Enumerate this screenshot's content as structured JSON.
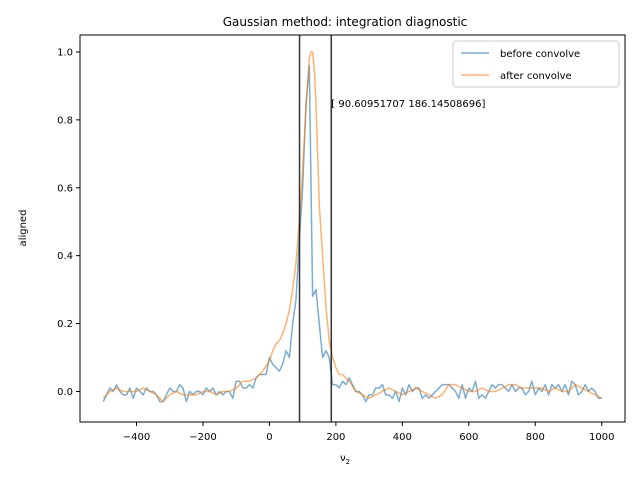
{
  "chart_data": {
    "type": "line",
    "title": "Gaussian method:  integration diagnostic",
    "xlabel": "ν",
    "xlabel_sub": "2",
    "ylabel": "aligned",
    "xlim": [
      -570,
      1070
    ],
    "ylim": [
      -0.09,
      1.05
    ],
    "xticks": [
      -400,
      -200,
      0,
      200,
      400,
      600,
      800,
      1000
    ],
    "yticks": [
      0.0,
      0.2,
      0.4,
      0.6,
      0.8,
      1.0
    ],
    "xtick_labels": [
      "−400",
      "−200",
      "0",
      "200",
      "400",
      "600",
      "800",
      "1000"
    ],
    "ytick_labels": [
      "0.0",
      "0.2",
      "0.4",
      "0.6",
      "0.8",
      "1.0"
    ],
    "legend_position": "top-right",
    "vlines": [
      90.60951707,
      186.14508696
    ],
    "annotation": {
      "text": "[ 90.60951707 186.14508696]",
      "x": 186.14508696,
      "y": 0.85
    },
    "series": [
      {
        "name": "before convolve",
        "color": "#1f77b4",
        "x": [
          -500,
          -490,
          -480,
          -470,
          -460,
          -450,
          -440,
          -430,
          -420,
          -410,
          -400,
          -390,
          -380,
          -370,
          -360,
          -350,
          -340,
          -330,
          -320,
          -310,
          -300,
          -290,
          -280,
          -270,
          -260,
          -250,
          -240,
          -230,
          -220,
          -210,
          -200,
          -190,
          -180,
          -170,
          -160,
          -150,
          -140,
          -130,
          -120,
          -110,
          -100,
          -90,
          -80,
          -70,
          -60,
          -50,
          -40,
          -30,
          -20,
          -10,
          0,
          10,
          20,
          30,
          40,
          50,
          60,
          70,
          80,
          90,
          100,
          110,
          120,
          130,
          140,
          150,
          160,
          170,
          180,
          190,
          200,
          210,
          220,
          230,
          240,
          250,
          260,
          270,
          280,
          290,
          300,
          310,
          320,
          330,
          340,
          350,
          360,
          370,
          380,
          390,
          400,
          410,
          420,
          430,
          440,
          450,
          460,
          470,
          480,
          490,
          500,
          510,
          520,
          530,
          540,
          550,
          560,
          570,
          580,
          590,
          600,
          610,
          620,
          630,
          640,
          650,
          660,
          670,
          680,
          690,
          700,
          710,
          720,
          730,
          740,
          750,
          760,
          770,
          780,
          790,
          800,
          810,
          820,
          830,
          840,
          850,
          860,
          870,
          880,
          890,
          900,
          910,
          920,
          930,
          940,
          950,
          960,
          970,
          980,
          990,
          1000
        ],
        "y": [
          -0.03,
          -0.01,
          0.01,
          0.0,
          0.02,
          0.0,
          -0.01,
          -0.01,
          0.01,
          -0.02,
          0.01,
          0.0,
          -0.01,
          0.01,
          0.0,
          0.0,
          -0.01,
          -0.03,
          -0.03,
          -0.01,
          0.01,
          0.0,
          0.0,
          0.02,
          0.01,
          -0.03,
          0.0,
          -0.01,
          0.0,
          0.0,
          -0.01,
          0.01,
          0.0,
          0.01,
          -0.01,
          0.0,
          -0.01,
          0.0,
          0.0,
          -0.02,
          0.03,
          0.03,
          0.01,
          0.01,
          0.02,
          0.01,
          0.04,
          0.05,
          0.05,
          0.05,
          0.1,
          0.08,
          0.07,
          0.06,
          0.08,
          0.12,
          0.1,
          0.2,
          0.27,
          0.45,
          0.6,
          0.85,
          0.96,
          0.28,
          0.3,
          0.2,
          0.1,
          0.12,
          0.1,
          0.02,
          0.02,
          0.01,
          0.03,
          0.02,
          0.04,
          0.02,
          0.0,
          0.0,
          -0.01,
          -0.03,
          -0.01,
          -0.01,
          0.01,
          0.01,
          0.02,
          -0.01,
          -0.01,
          -0.02,
          0.0,
          -0.03,
          0.01,
          -0.01,
          0.02,
          0.0,
          0.01,
          0.01,
          -0.02,
          -0.01,
          -0.02,
          -0.01,
          0.0,
          0.01,
          0.02,
          0.02,
          0.02,
          0.01,
          0.0,
          -0.02,
          0.02,
          -0.02,
          0.01,
          0.0,
          0.03,
          -0.02,
          -0.01,
          -0.02,
          0.0,
          0.02,
          0.01,
          0.02,
          0.02,
          0.01,
          0.0,
          0.02,
          0.0,
          0.01,
          0.01,
          -0.01,
          0.0,
          0.03,
          -0.01,
          0.01,
          0.0,
          0.02,
          -0.01,
          0.02,
          0.01,
          0.02,
          0.0,
          0.02,
          -0.01,
          0.03,
          0.02,
          -0.01,
          0.0,
          0.02,
          0.0,
          0.01,
          0.0,
          -0.02,
          -0.02
        ],
        "note": "x: 10-step grid from -500 to 1000; y values read from plot"
      },
      {
        "name": "after convolve",
        "color": "#ff7f0e",
        "x": [
          -500,
          -480,
          -460,
          -440,
          -420,
          -400,
          -380,
          -360,
          -340,
          -320,
          -300,
          -280,
          -260,
          -240,
          -220,
          -200,
          -180,
          -160,
          -140,
          -120,
          -100,
          -80,
          -60,
          -40,
          -20,
          0,
          10,
          20,
          30,
          40,
          50,
          60,
          70,
          80,
          90,
          100,
          110,
          120,
          125,
          130,
          135,
          140,
          145,
          150,
          160,
          170,
          180,
          190,
          200,
          210,
          220,
          240,
          260,
          280,
          300,
          320,
          340,
          360,
          380,
          400,
          420,
          440,
          460,
          480,
          500,
          520,
          540,
          560,
          580,
          600,
          620,
          640,
          660,
          680,
          700,
          720,
          740,
          760,
          780,
          800,
          820,
          840,
          860,
          880,
          900,
          920,
          940,
          960,
          980,
          1000
        ],
        "y": [
          -0.02,
          0.0,
          0.01,
          0.0,
          0.0,
          0.0,
          0.01,
          0.0,
          -0.01,
          -0.03,
          -0.01,
          0.0,
          -0.01,
          -0.01,
          -0.01,
          0.0,
          0.0,
          -0.01,
          0.0,
          0.0,
          0.01,
          0.03,
          0.03,
          0.04,
          0.06,
          0.09,
          0.12,
          0.14,
          0.15,
          0.17,
          0.2,
          0.24,
          0.3,
          0.38,
          0.5,
          0.65,
          0.83,
          0.98,
          1.0,
          1.0,
          0.95,
          0.85,
          0.7,
          0.55,
          0.4,
          0.25,
          0.15,
          0.1,
          0.07,
          0.05,
          0.05,
          0.03,
          0.0,
          -0.01,
          -0.02,
          -0.01,
          0.0,
          0.01,
          0.0,
          -0.01,
          0.0,
          0.01,
          0.0,
          -0.01,
          -0.02,
          -0.01,
          0.02,
          0.02,
          0.01,
          0.0,
          0.0,
          0.01,
          0.0,
          0.0,
          0.01,
          0.02,
          0.02,
          0.01,
          0.01,
          0.01,
          0.01,
          0.0,
          0.01,
          0.0,
          0.0,
          0.02,
          0.01,
          0.0,
          -0.01,
          -0.02
        ]
      }
    ]
  }
}
